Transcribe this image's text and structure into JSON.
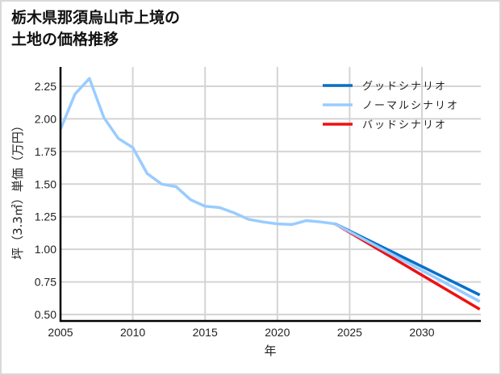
{
  "title": "栃木県那須烏山市上境の\n土地の価格推移",
  "chart_data": {
    "type": "line",
    "title": "栃木県那須烏山市上境の土地の価格推移",
    "xlabel": "年",
    "ylabel": "坪（3.3㎡）単価（万円）",
    "xlim": [
      2005,
      2034
    ],
    "ylim": [
      0.45,
      2.4
    ],
    "xticks": [
      2005,
      2010,
      2015,
      2020,
      2025,
      2030
    ],
    "yticks": [
      0.5,
      0.75,
      1.0,
      1.25,
      1.5,
      1.75,
      2.0,
      2.25
    ],
    "ytick_labels": [
      "0.50",
      "0.75",
      "1.00",
      "1.25",
      "1.50",
      "1.75",
      "2.00",
      "2.25"
    ],
    "grid": true,
    "legend_position": "upper right",
    "historical": {
      "name": "ノーマルシナリオ",
      "x": [
        2005,
        2006,
        2007,
        2008,
        2009,
        2010,
        2011,
        2012,
        2013,
        2014,
        2015,
        2016,
        2017,
        2018,
        2019,
        2020,
        2021,
        2022,
        2023,
        2024
      ],
      "values": [
        1.92,
        2.19,
        2.31,
        2.01,
        1.85,
        1.78,
        1.58,
        1.5,
        1.48,
        1.38,
        1.33,
        1.32,
        1.28,
        1.23,
        1.21,
        1.195,
        1.19,
        1.22,
        1.21,
        1.195
      ]
    },
    "series": [
      {
        "name": "グッドシナリオ",
        "color": "#0a6fc9",
        "x": [
          2024,
          2034
        ],
        "values": [
          1.195,
          0.65
        ]
      },
      {
        "name": "ノーマルシナリオ",
        "color": "#99ccff",
        "x": [
          2024,
          2034
        ],
        "values": [
          1.195,
          0.6
        ]
      },
      {
        "name": "バッドシナリオ",
        "color": "#ee1111",
        "x": [
          2024,
          2034
        ],
        "values": [
          1.195,
          0.54
        ]
      }
    ]
  },
  "legend": [
    {
      "label": "グッドシナリオ",
      "color": "#0a6fc9"
    },
    {
      "label": "ノーマルシナリオ",
      "color": "#99ccff"
    },
    {
      "label": "バッドシナリオ",
      "color": "#ee1111"
    }
  ]
}
